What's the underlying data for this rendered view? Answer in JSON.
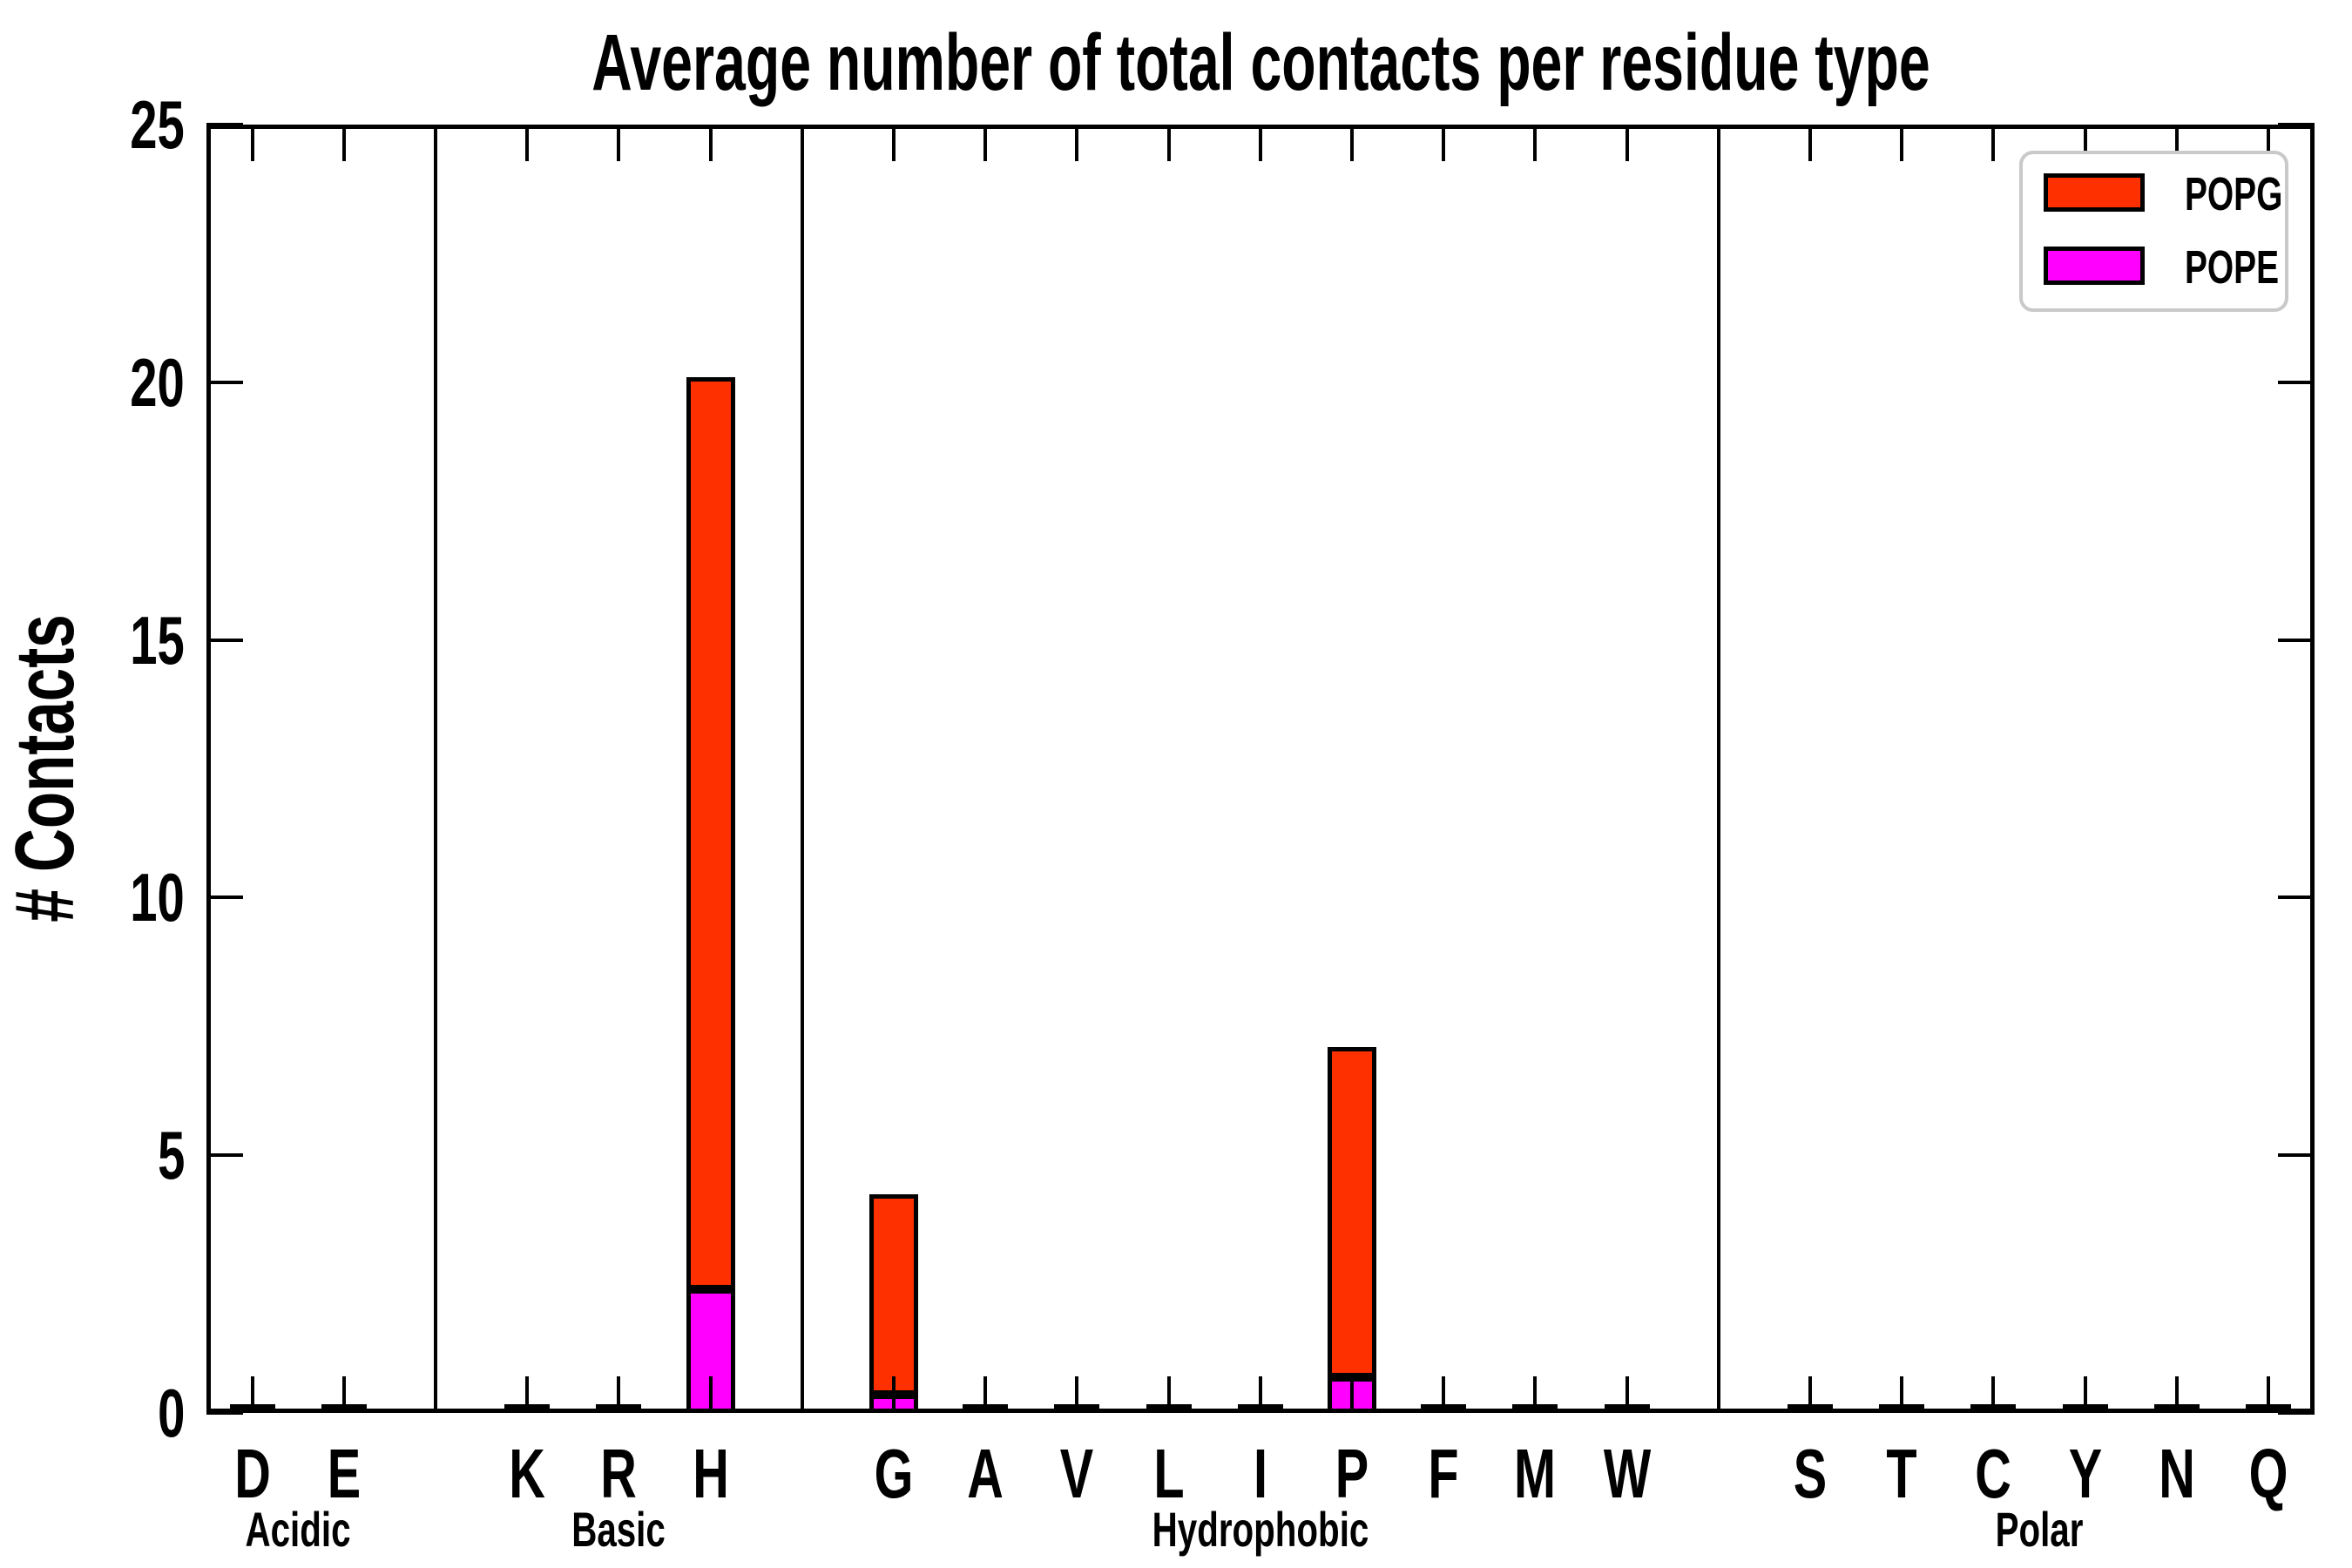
{
  "title": "Average number of total contacts per residue type",
  "ylabel": "# Contacts",
  "legend": {
    "entries": [
      {
        "label": "POPG",
        "color": "#FF3000"
      },
      {
        "label": "POPE",
        "color": "#FF00FF"
      }
    ]
  },
  "chart_data": {
    "type": "bar",
    "stacked": true,
    "title": "Average number of total contacts per residue type",
    "xlabel": "",
    "ylabel": "# Contacts",
    "ylim": [
      0,
      25
    ],
    "yticks": [
      0,
      5,
      10,
      15,
      20,
      25
    ],
    "grid": false,
    "legend_position": "upper right",
    "categories": [
      "D",
      "E",
      "K",
      "R",
      "H",
      "G",
      "A",
      "V",
      "L",
      "I",
      "P",
      "F",
      "M",
      "W",
      "S",
      "T",
      "C",
      "Y",
      "N",
      "Q"
    ],
    "groups": [
      {
        "label": "Acidic",
        "residues": [
          "D",
          "E"
        ]
      },
      {
        "label": "Basic",
        "residues": [
          "K",
          "R",
          "H"
        ]
      },
      {
        "label": "Hydrophobic",
        "residues": [
          "G",
          "A",
          "V",
          "L",
          "I",
          "P",
          "F",
          "M",
          "W"
        ]
      },
      {
        "label": "Polar",
        "residues": [
          "S",
          "T",
          "C",
          "Y",
          "N",
          "Q"
        ]
      }
    ],
    "stack_order": [
      "POPE",
      "POPG"
    ],
    "series": [
      {
        "name": "POPG",
        "color": "#FF3000",
        "values": [
          0,
          0,
          0,
          0,
          17.7,
          3.9,
          0,
          0,
          0,
          0,
          6.4,
          0,
          0,
          0,
          0,
          0,
          0,
          0,
          0,
          0
        ]
      },
      {
        "name": "POPE",
        "color": "#FF00FF",
        "values": [
          0,
          0,
          0,
          0,
          2.4,
          0.35,
          0,
          0,
          0,
          0,
          0.7,
          0,
          0,
          0,
          0,
          0,
          0,
          0,
          0,
          0
        ]
      }
    ],
    "totals_note": "stacked totals: H=20.1, G=4.25, P=7.1, all others ~0"
  }
}
